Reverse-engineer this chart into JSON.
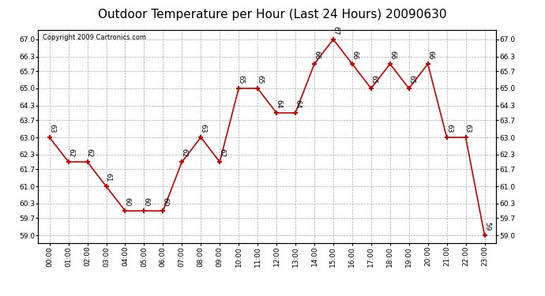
{
  "title": "Outdoor Temperature per Hour (Last 24 Hours) 20090630",
  "copyright_text": "Copyright 2009 Cartronics.com",
  "hours": [
    "00:00",
    "01:00",
    "02:00",
    "03:00",
    "04:00",
    "05:00",
    "06:00",
    "07:00",
    "08:00",
    "09:00",
    "10:00",
    "11:00",
    "12:00",
    "13:00",
    "14:00",
    "15:00",
    "16:00",
    "17:00",
    "18:00",
    "19:00",
    "20:00",
    "21:00",
    "22:00",
    "23:00"
  ],
  "temps": [
    63,
    62,
    62,
    61,
    60,
    60,
    60,
    62,
    63,
    62,
    65,
    65,
    64,
    64,
    66,
    67,
    66,
    65,
    66,
    65,
    66,
    63,
    63,
    59
  ],
  "line_color": "#cc0000",
  "marker_color": "#cc0000",
  "grid_color": "#aaaaaa",
  "bg_color": "#ffffff",
  "text_color": "#000000",
  "y_ticks": [
    59.0,
    59.7,
    60.3,
    61.0,
    61.7,
    62.3,
    63.0,
    63.7,
    64.3,
    65.0,
    65.7,
    66.3,
    67.0
  ],
  "ylim": [
    58.7,
    67.4
  ],
  "xlim": [
    -0.6,
    23.6
  ],
  "title_fontsize": 11,
  "label_fontsize": 6.5,
  "annotation_fontsize": 6.5,
  "copyright_fontsize": 6,
  "figsize": [
    6.9,
    3.75
  ],
  "dpi": 100
}
